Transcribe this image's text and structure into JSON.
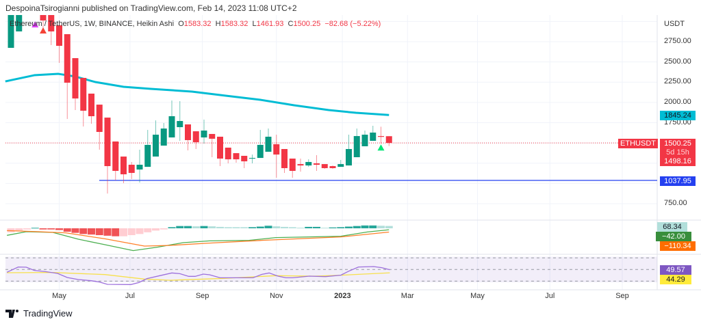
{
  "publisher_line": "DespoinaTsirogianni published on TradingView.com, Feb 14, 2023 11:08 UTC+2",
  "legend": {
    "symbol": "Ethereum / TetherUS, 1W, BINANCE, Heikin Ashi",
    "o_label": "O",
    "o": "1583.32",
    "h_label": "H",
    "h": "1583.32",
    "l_label": "L",
    "l": "1461.93",
    "c_label": "C",
    "c": "1500.25",
    "change": "−82.68 (−5.22%)"
  },
  "price_axis": {
    "unit": "USDT",
    "ticks": [
      "2750.00",
      "2500.00",
      "2250.00",
      "2000.00",
      "1750.00",
      "750.00"
    ],
    "tick_values": [
      2750,
      2500,
      2250,
      2000,
      1750,
      750
    ]
  },
  "time_axis": [
    {
      "label": "May",
      "week": 6
    },
    {
      "label": "Jul",
      "week": 14.8
    },
    {
      "label": "Sep",
      "week": 23.8
    },
    {
      "label": "Nov",
      "week": 33
    },
    {
      "label": "2023",
      "week": 41.2
    },
    {
      "label": "Mar",
      "week": 49.3
    },
    {
      "label": "May",
      "week": 58
    },
    {
      "label": "Jul",
      "week": 67
    },
    {
      "label": "Sep",
      "week": 76
    }
  ],
  "tags": {
    "ema": "1845.24",
    "symbol": "ETHUSDT",
    "last": "1500.25",
    "countdown": "5d 15h",
    "prev": "1498.16",
    "hline": "1037.95",
    "macd_hist": "68.34",
    "macd": "−42.00",
    "signal": "−110.34",
    "rsi": "49.57",
    "rsi_ma": "44.29"
  },
  "colors": {
    "up": "#089981",
    "down": "#f23645",
    "ema": "#00bcd4",
    "hline": "#2440f0",
    "macd": "#4caf50",
    "signal": "#ff7f27",
    "rsi": "#9c6fdc",
    "rsi_ma": "#f7e04b"
  },
  "footer": {
    "brand": "TradingView"
  },
  "chart_data": {
    "type": "candlestick",
    "hline": 1037.95,
    "last": 1500.25,
    "candles": [
      [
        2674,
        3138,
        2674,
        3138
      ],
      [
        2877,
        3138,
        2877,
        3138
      ],
      null,
      null,
      [
        3138,
        3138,
        2885,
        3012
      ],
      [
        3138,
        3138,
        2708,
        2877
      ],
      [
        2953,
        2953,
        2488,
        2699
      ],
      [
        2843,
        2843,
        1796,
        2244
      ],
      [
        2547,
        2547,
        1906,
        2049
      ],
      [
        2303,
        2303,
        1703,
        1898
      ],
      [
        2109,
        2109,
        1737,
        1830
      ],
      [
        1973,
        1973,
        1417,
        1636
      ],
      [
        1813,
        1813,
        876,
        1214
      ],
      [
        1518,
        1518,
        1037,
        1155
      ],
      [
        1332,
        1332,
        1003,
        1113
      ],
      [
        1231,
        1265,
        1054,
        1130
      ],
      [
        1172,
        1417,
        1011,
        1231
      ],
      [
        1205,
        1661,
        1205,
        1476
      ],
      [
        1332,
        1779,
        1332,
        1602
      ],
      [
        1467,
        1746,
        1467,
        1678
      ],
      [
        1568,
        2024,
        1568,
        1830
      ],
      [
        1695,
        2016,
        1526,
        1771
      ],
      [
        1729,
        1729,
        1408,
        1535
      ],
      [
        1644,
        1644,
        1425,
        1509
      ],
      [
        1568,
        1788,
        1492,
        1653
      ],
      [
        1611,
        1611,
        1324,
        1552
      ],
      [
        1577,
        1577,
        1214,
        1307
      ],
      [
        1442,
        1442,
        1248,
        1298
      ],
      [
        1374,
        1374,
        1256,
        1298
      ],
      [
        1341,
        1341,
        1189,
        1273
      ],
      [
        1307,
        1357,
        1248,
        1315
      ],
      [
        1315,
        1661,
        1315,
        1476
      ],
      [
        1391,
        1678,
        1391,
        1577
      ],
      [
        1484,
        1602,
        1070,
        1357
      ],
      [
        1425,
        1425,
        1130,
        1189
      ],
      [
        1307,
        1307,
        1070,
        1155
      ],
      [
        1239,
        1307,
        1146,
        1222
      ],
      [
        1222,
        1298,
        1205,
        1265
      ],
      [
        1248,
        1349,
        1155,
        1231
      ],
      [
        1239,
        1239,
        1180,
        1189
      ],
      [
        1214,
        1222,
        1180,
        1189
      ],
      [
        1205,
        1290,
        1205,
        1239
      ],
      [
        1222,
        1602,
        1222,
        1425
      ],
      [
        1324,
        1678,
        1324,
        1585
      ],
      [
        1459,
        1653,
        1459,
        1602
      ],
      [
        1526,
        1712,
        1526,
        1628
      ],
      [
        1585,
        1700,
        1490,
        1575
      ],
      [
        1583.32,
        1583.32,
        1461.93,
        1500.25
      ]
    ],
    "ema": [
      [
        -0.7,
        2260
      ],
      [
        2.9,
        2336
      ],
      [
        5.9,
        2353
      ],
      [
        8,
        2320
      ],
      [
        10.5,
        2252
      ],
      [
        14,
        2193
      ],
      [
        17.4,
        2168
      ],
      [
        22.5,
        2134
      ],
      [
        26.7,
        2083
      ],
      [
        31,
        2033
      ],
      [
        35.2,
        1965
      ],
      [
        39.5,
        1906
      ],
      [
        42.9,
        1872
      ],
      [
        47,
        1845.24
      ]
    ],
    "markers": [
      {
        "week": 3,
        "price": 2960,
        "color": "#e040fb"
      },
      {
        "week": 4,
        "price": 2885,
        "color": "#f44336"
      },
      {
        "week": 46,
        "price": 1440,
        "color": "#00e676"
      }
    ],
    "macd_hist": [
      [
        -117,
        "lp"
      ],
      [
        -67,
        "lp"
      ],
      [
        -33,
        "lp"
      ],
      [
        15,
        "t"
      ],
      [
        -33,
        "r"
      ],
      [
        -33,
        "r"
      ],
      [
        -50,
        "r"
      ],
      [
        -100,
        "r"
      ],
      [
        -133,
        "r"
      ],
      [
        -167,
        "r"
      ],
      [
        -183,
        "r"
      ],
      [
        -200,
        "r"
      ],
      [
        -217,
        "r"
      ],
      [
        -233,
        "r"
      ],
      [
        -233,
        "lp"
      ],
      [
        -200,
        "lp"
      ],
      [
        -167,
        "lp"
      ],
      [
        -117,
        "lp"
      ],
      [
        -67,
        "lp"
      ],
      [
        -33,
        "lp"
      ],
      [
        33,
        "t"
      ],
      [
        67,
        "t"
      ],
      [
        67,
        "t"
      ],
      [
        58,
        "lt"
      ],
      [
        67,
        "t"
      ],
      [
        58,
        "lt"
      ],
      [
        42,
        "lt"
      ],
      [
        33,
        "lt"
      ],
      [
        33,
        "lt"
      ],
      [
        33,
        "lt"
      ],
      [
        33,
        "t"
      ],
      [
        50,
        "t"
      ],
      [
        75,
        "t"
      ],
      [
        58,
        "lt"
      ],
      [
        42,
        "lt"
      ],
      [
        33,
        "lt"
      ],
      [
        17,
        "lt"
      ],
      [
        42,
        "t"
      ],
      [
        42,
        "t"
      ],
      [
        17,
        "lt"
      ],
      [
        25,
        "t"
      ],
      [
        33,
        "t"
      ],
      [
        50,
        "t"
      ],
      [
        67,
        "t"
      ],
      [
        83,
        "t"
      ],
      [
        83,
        "t"
      ],
      [
        75,
        "lt"
      ],
      [
        68.34,
        "lt"
      ]
    ],
    "macd": [
      [
        -0.5,
        -206
      ],
      [
        1.9,
        -100
      ],
      [
        5.2,
        -120
      ],
      [
        8.4,
        -320
      ],
      [
        11.7,
        -480
      ],
      [
        15.2,
        -653
      ],
      [
        18.2,
        -553
      ],
      [
        21.4,
        -420
      ],
      [
        24.7,
        -367
      ],
      [
        29.6,
        -353
      ],
      [
        32.9,
        -273
      ],
      [
        41,
        -233
      ],
      [
        44.3,
        -107
      ],
      [
        47,
        -42
      ]
    ],
    "signal": [
      [
        -0.5,
        -67
      ],
      [
        3.5,
        -100
      ],
      [
        6.8,
        -133
      ],
      [
        11.7,
        -307
      ],
      [
        16.6,
        -520
      ],
      [
        19.8,
        -500
      ],
      [
        24.7,
        -433
      ],
      [
        31.2,
        -353
      ],
      [
        41,
        -253
      ],
      [
        47,
        -110.34
      ]
    ],
    "rsi": [
      [
        -0.5,
        45.3
      ],
      [
        0.9,
        54.3
      ],
      [
        1.9,
        54
      ],
      [
        2.9,
        48.4
      ],
      [
        4.3,
        46.4
      ],
      [
        5.8,
        43.3
      ],
      [
        7,
        36.2
      ],
      [
        8.4,
        32.7
      ],
      [
        10,
        30.7
      ],
      [
        11,
        28.4
      ],
      [
        12,
        24.5
      ],
      [
        14.9,
        24.1
      ],
      [
        15.9,
        27.6
      ],
      [
        16.9,
        34.3
      ],
      [
        18.5,
        39.4
      ],
      [
        20,
        44.1
      ],
      [
        21,
        42.9
      ],
      [
        22.1,
        38.2
      ],
      [
        22.9,
        38.2
      ],
      [
        23.9,
        42.1
      ],
      [
        24.7,
        40.9
      ],
      [
        26,
        35.8
      ],
      [
        28,
        35.8
      ],
      [
        30.1,
        35.8
      ],
      [
        31.2,
        41.7
      ],
      [
        32.1,
        44.1
      ],
      [
        33.2,
        38.6
      ],
      [
        34.2,
        35.8
      ],
      [
        35,
        35.8
      ],
      [
        37.1,
        38.6
      ],
      [
        39.1,
        37.8
      ],
      [
        41,
        40.2
      ],
      [
        42,
        47.2
      ],
      [
        43.2,
        54.3
      ],
      [
        45.1,
        55.1
      ],
      [
        46.1,
        53.1
      ],
      [
        47.1,
        49.57
      ]
    ],
    "rsi_ma": [
      [
        -0.5,
        44.5
      ],
      [
        5.2,
        44.9
      ],
      [
        11.7,
        41.3
      ],
      [
        16.6,
        33.5
      ],
      [
        19.8,
        31.5
      ],
      [
        26.4,
        34.7
      ],
      [
        32.9,
        39.4
      ],
      [
        37.8,
        38.6
      ],
      [
        41,
        40.2
      ],
      [
        47.1,
        44.29
      ]
    ],
    "rsi_levels": [
      70,
      50,
      30
    ]
  }
}
